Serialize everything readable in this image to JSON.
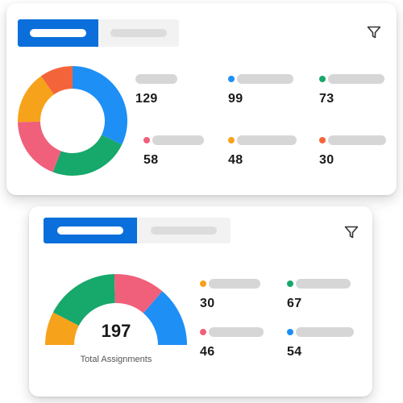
{
  "colors": {
    "accent": "#0a6fdb",
    "blue": "#1e8ff5",
    "green": "#17a86b",
    "pink": "#f0607a",
    "orange": "#f7a21b",
    "red_orange": "#f4643a",
    "placeholder": "#d6d6d6"
  },
  "card_top": {
    "filter_icon": "filter-icon",
    "legend": [
      {
        "value": "129",
        "dot": ""
      },
      {
        "value": "99",
        "dot": "#1e8ff5"
      },
      {
        "value": "73",
        "dot": "#17a86b"
      },
      {
        "value": "58",
        "dot": "#f0607a"
      },
      {
        "value": "48",
        "dot": "#f7a21b"
      },
      {
        "value": "30",
        "dot": "#f4643a"
      }
    ]
  },
  "card_bottom": {
    "filter_icon": "filter-icon",
    "total_value": "197",
    "total_caption": "Total Assignments",
    "legend": [
      {
        "value": "30",
        "dot": "#f7a21b"
      },
      {
        "value": "67",
        "dot": "#17a86b"
      },
      {
        "value": "46",
        "dot": "#f0607a"
      },
      {
        "value": "54",
        "dot": "#1e8ff5"
      }
    ]
  },
  "chart_data": [
    {
      "type": "pie",
      "variant": "donut",
      "values": [
        99,
        73,
        58,
        48,
        30
      ],
      "colors": [
        "#1e8ff5",
        "#17a86b",
        "#f0607a",
        "#f7a21b",
        "#f4643a"
      ]
    },
    {
      "type": "pie",
      "variant": "semi-donut",
      "values": [
        30,
        67,
        46,
        54
      ],
      "colors": [
        "#f7a21b",
        "#17a86b",
        "#f0607a",
        "#1e8ff5"
      ]
    }
  ]
}
